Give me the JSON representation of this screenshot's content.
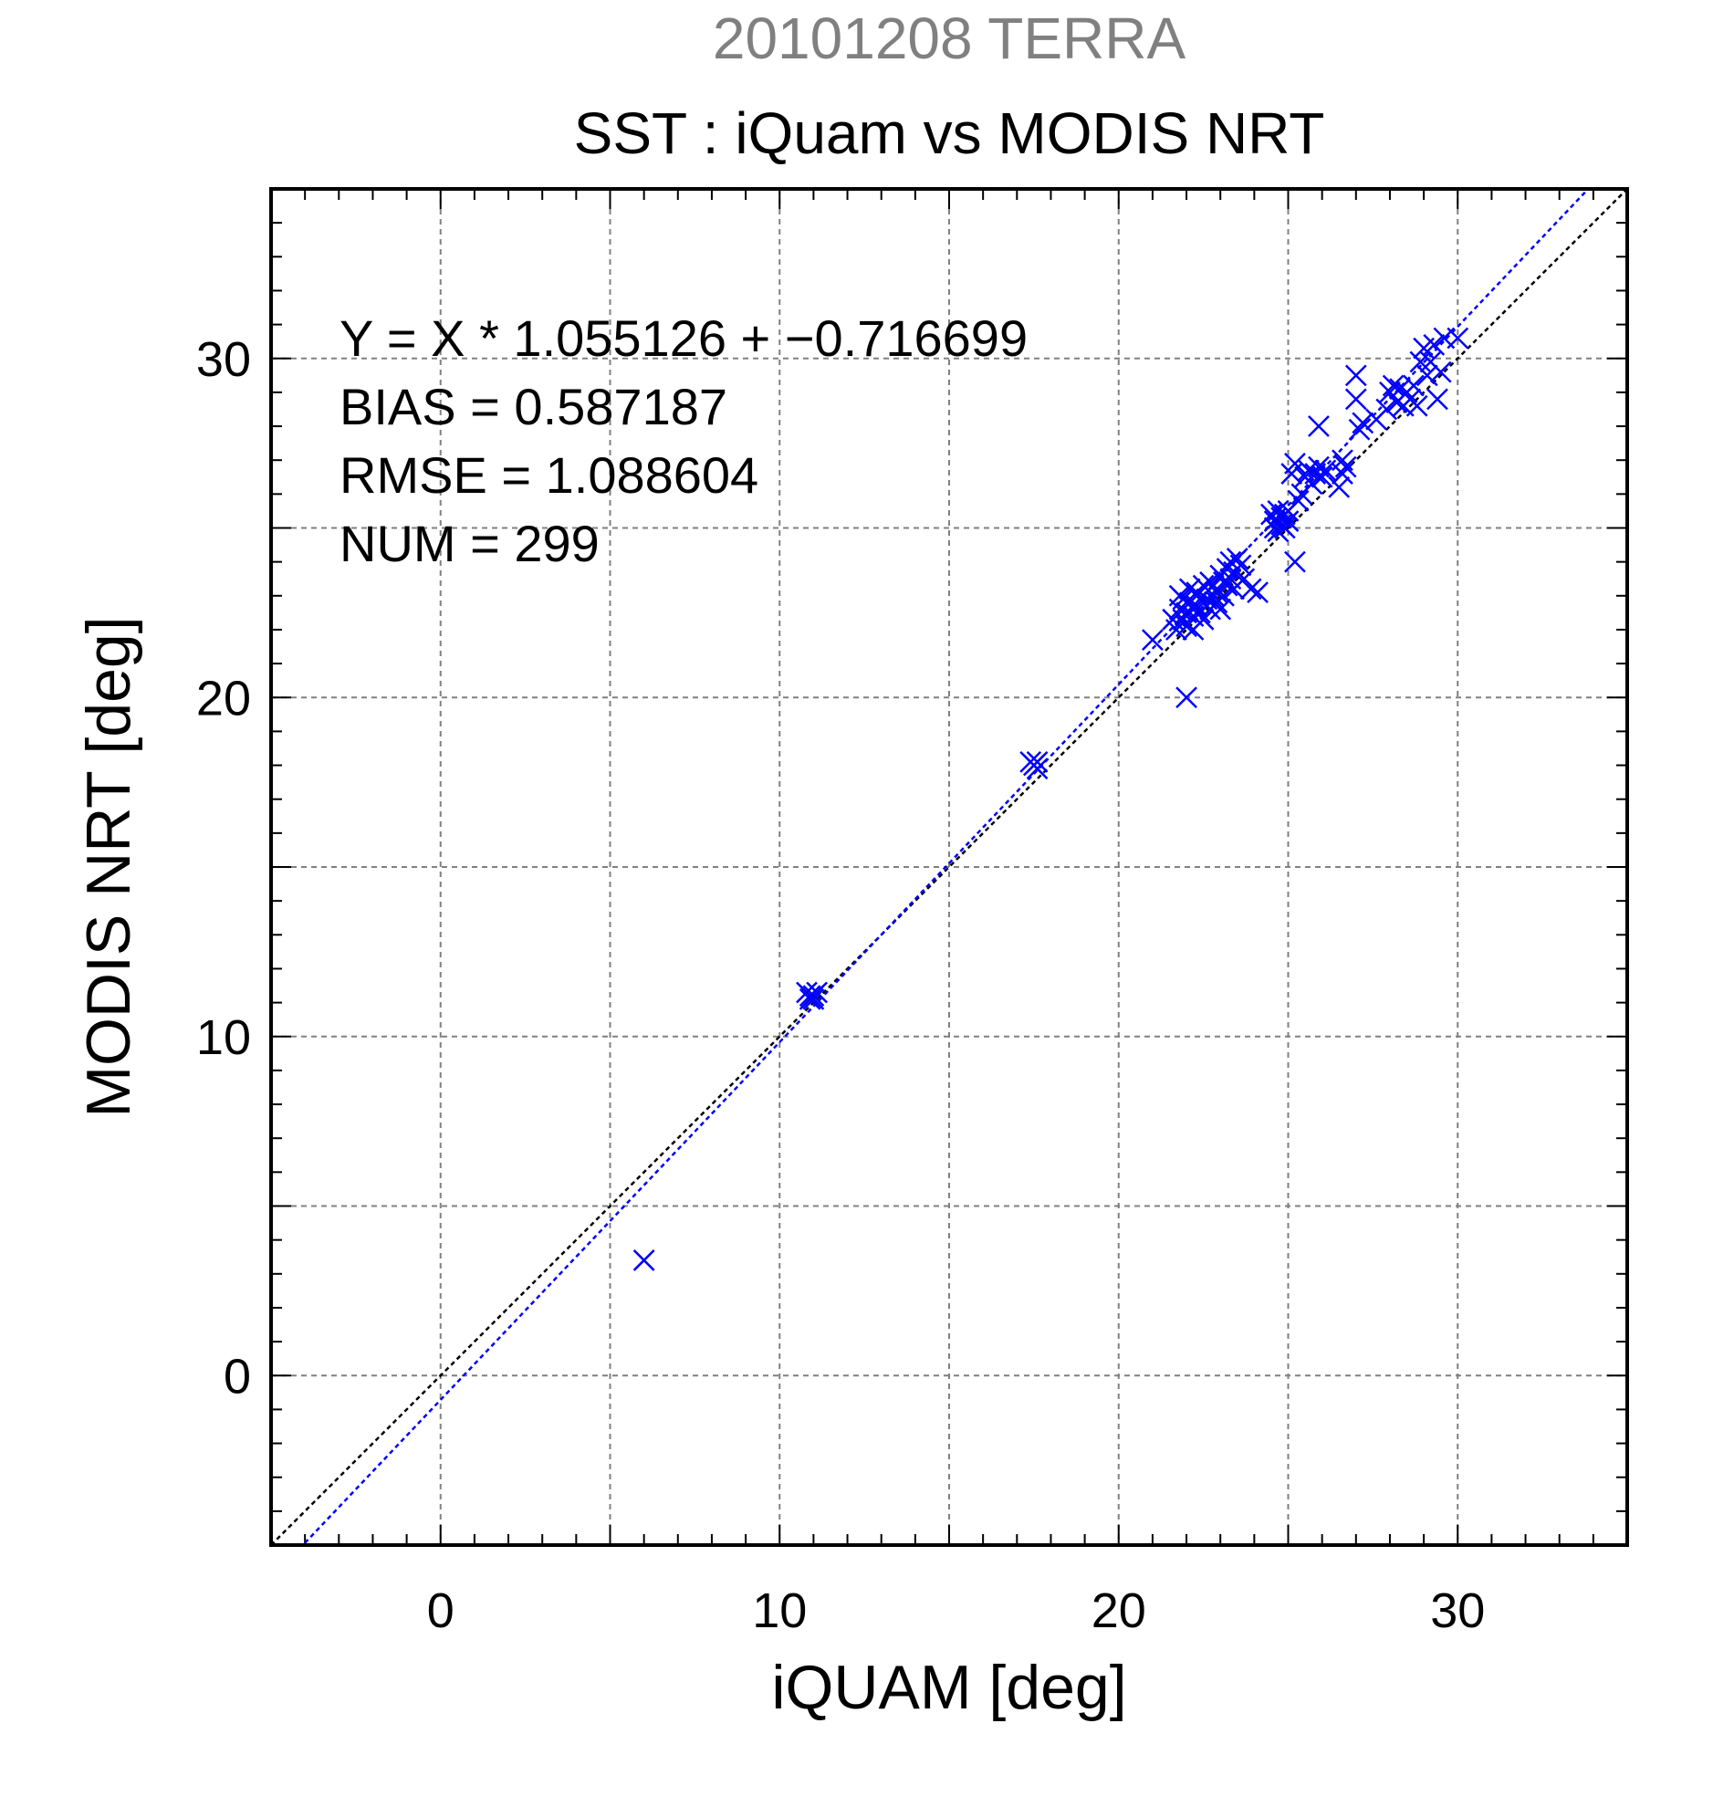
{
  "chart_data": {
    "type": "scatter",
    "supertitle": "20101208 TERRA",
    "title": "SST : iQuam vs MODIS NRT",
    "xlabel": "iQUAM [deg]",
    "ylabel": "MODIS NRT [deg]",
    "xlim": [
      -5,
      35
    ],
    "ylim": [
      -5,
      35
    ],
    "xticks": [
      0,
      10,
      20,
      30
    ],
    "yticks": [
      0,
      10,
      20,
      30
    ],
    "grid": true,
    "annotations": [
      "Y = X * 1.055126 + −0.716699",
      "BIAS = 0.587187",
      "RMSE = 1.088604",
      "NUM = 299"
    ],
    "regression": {
      "slope": 1.055126,
      "intercept": -0.716699
    },
    "reference_line": {
      "slope": 1,
      "intercept": 0
    },
    "colors": {
      "points": "#0000ff",
      "regression": "#0000ff",
      "reference": "#000000",
      "supertitle": "#808080"
    },
    "series": [
      {
        "marker": "x",
        "points": [
          [
            6.0,
            3.4
          ],
          [
            10.8,
            11.3
          ],
          [
            10.9,
            11.2
          ],
          [
            11.0,
            11.1
          ],
          [
            11.1,
            11.3
          ],
          [
            10.9,
            11.1
          ],
          [
            11.0,
            11.2
          ],
          [
            17.4,
            18.1
          ],
          [
            17.6,
            17.9
          ],
          [
            17.5,
            18.0
          ],
          [
            17.6,
            18.1
          ],
          [
            21.0,
            21.7
          ],
          [
            22.0,
            20.0
          ],
          [
            21.6,
            22.3
          ],
          [
            21.7,
            22.0
          ],
          [
            21.8,
            22.6
          ],
          [
            21.8,
            23.0
          ],
          [
            21.9,
            22.3
          ],
          [
            21.9,
            22.9
          ],
          [
            22.0,
            22.5
          ],
          [
            22.0,
            22.1
          ],
          [
            22.1,
            22.8
          ],
          [
            22.1,
            23.2
          ],
          [
            22.2,
            22.4
          ],
          [
            22.2,
            22.0
          ],
          [
            22.3,
            22.7
          ],
          [
            22.3,
            23.1
          ],
          [
            22.4,
            22.5
          ],
          [
            22.4,
            22.9
          ],
          [
            22.5,
            22.3
          ],
          [
            22.5,
            23.3
          ],
          [
            22.6,
            22.7
          ],
          [
            22.6,
            22.9
          ],
          [
            22.7,
            23.4
          ],
          [
            22.7,
            22.6
          ],
          [
            22.8,
            23.0
          ],
          [
            22.8,
            23.3
          ],
          [
            22.9,
            22.8
          ],
          [
            22.9,
            23.1
          ],
          [
            23.0,
            23.6
          ],
          [
            23.0,
            22.6
          ],
          [
            23.1,
            23.4
          ],
          [
            23.1,
            23.0
          ],
          [
            23.2,
            23.8
          ],
          [
            23.2,
            23.3
          ],
          [
            23.3,
            23.5
          ],
          [
            23.3,
            24.0
          ],
          [
            23.4,
            23.7
          ],
          [
            23.4,
            23.2
          ],
          [
            23.5,
            24.1
          ],
          [
            23.6,
            23.9
          ],
          [
            23.7,
            23.5
          ],
          [
            23.9,
            23.2
          ],
          [
            24.1,
            23.1
          ],
          [
            24.5,
            25.4
          ],
          [
            24.6,
            25.0
          ],
          [
            24.6,
            25.2
          ],
          [
            24.7,
            24.9
          ],
          [
            24.7,
            25.5
          ],
          [
            24.8,
            25.1
          ],
          [
            24.8,
            25.3
          ],
          [
            24.9,
            25.0
          ],
          [
            24.9,
            25.4
          ],
          [
            25.0,
            25.5
          ],
          [
            25.0,
            25.2
          ],
          [
            25.1,
            26.6
          ],
          [
            25.2,
            26.9
          ],
          [
            25.2,
            24.0
          ],
          [
            25.3,
            25.8
          ],
          [
            25.4,
            26.0
          ],
          [
            25.5,
            26.5
          ],
          [
            25.6,
            26.7
          ],
          [
            25.7,
            26.3
          ],
          [
            25.8,
            26.6
          ],
          [
            25.9,
            26.8
          ],
          [
            26.0,
            26.5
          ],
          [
            26.1,
            26.7
          ],
          [
            25.9,
            28.0
          ],
          [
            26.5,
            26.2
          ],
          [
            26.6,
            26.6
          ],
          [
            26.7,
            26.8
          ],
          [
            26.6,
            27.0
          ],
          [
            27.0,
            29.5
          ],
          [
            27.0,
            28.8
          ],
          [
            27.1,
            27.9
          ],
          [
            27.2,
            28.1
          ],
          [
            27.6,
            28.2
          ],
          [
            27.9,
            28.5
          ],
          [
            28.0,
            29.0
          ],
          [
            28.1,
            29.2
          ],
          [
            28.2,
            28.7
          ],
          [
            28.3,
            29.1
          ],
          [
            28.4,
            28.6
          ],
          [
            28.5,
            29.0
          ],
          [
            28.6,
            28.8
          ],
          [
            28.7,
            29.2
          ],
          [
            28.8,
            28.6
          ],
          [
            28.9,
            29.9
          ],
          [
            29.0,
            30.3
          ],
          [
            29.1,
            29.5
          ],
          [
            29.2,
            29.9
          ],
          [
            29.3,
            30.4
          ],
          [
            29.4,
            28.8
          ],
          [
            29.5,
            29.6
          ],
          [
            29.6,
            30.6
          ],
          [
            30.0,
            30.6
          ]
        ]
      }
    ]
  }
}
